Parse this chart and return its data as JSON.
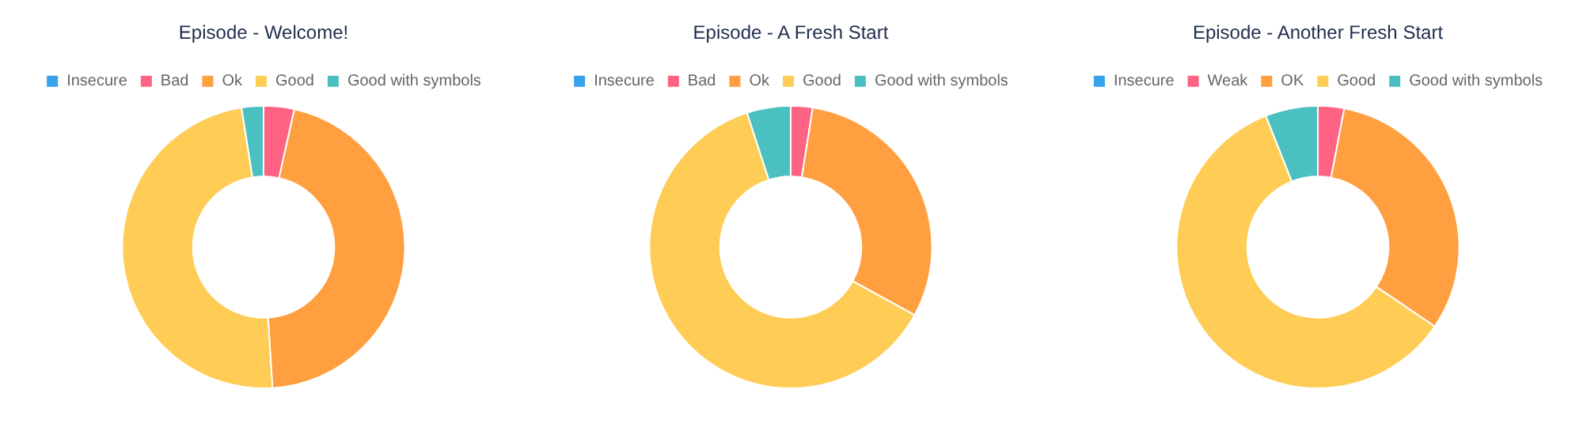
{
  "chart_data": [
    {
      "type": "donut",
      "title": "Episode - Welcome!",
      "categories": [
        "Insecure",
        "Bad",
        "Ok",
        "Good",
        "Good with symbols"
      ],
      "values": [
        0,
        3.5,
        45.5,
        48.5,
        2.5
      ],
      "colors": [
        "#36a2eb",
        "#ff6384",
        "#ff9f40",
        "#ffcd56",
        "#4bc0c0"
      ],
      "legend": "top"
    },
    {
      "type": "donut",
      "title": "Episode - A Fresh Start",
      "categories": [
        "Insecure",
        "Bad",
        "Ok",
        "Good",
        "Good with symbols"
      ],
      "values": [
        0,
        2.5,
        30.5,
        62,
        5
      ],
      "colors": [
        "#36a2eb",
        "#ff6384",
        "#ff9f40",
        "#ffcd56",
        "#4bc0c0"
      ],
      "legend": "top"
    },
    {
      "type": "donut",
      "title": "Episode - Another Fresh Start",
      "categories": [
        "Insecure",
        "Weak",
        "OK",
        "Good",
        "Good with symbols"
      ],
      "values": [
        0,
        3,
        31.5,
        59.5,
        6
      ],
      "colors": [
        "#36a2eb",
        "#ff6384",
        "#ff9f40",
        "#ffcd56",
        "#4bc0c0"
      ],
      "legend": "top"
    }
  ]
}
